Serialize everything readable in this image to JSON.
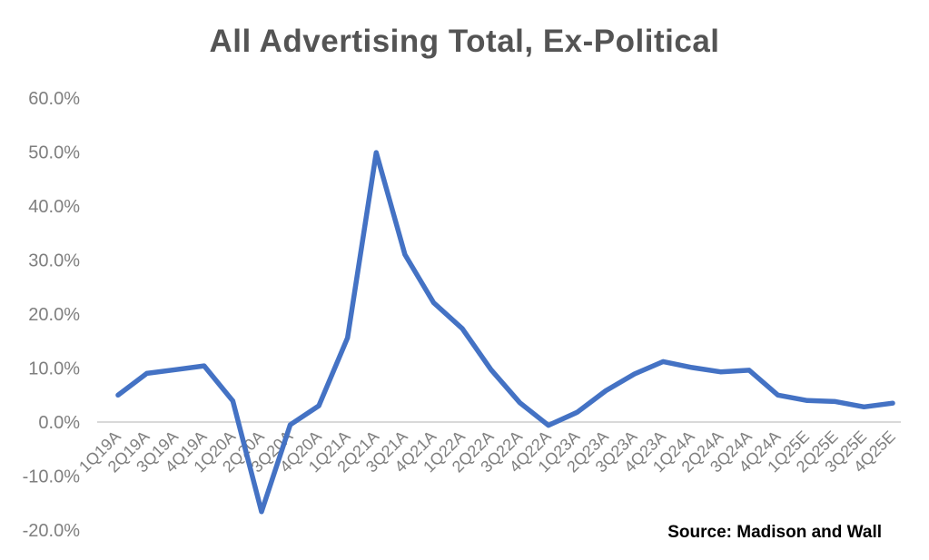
{
  "chart_data": {
    "type": "line",
    "title": "All Advertising Total, Ex-Political",
    "source": "Source: Madison and Wall",
    "categories": [
      "1Q19A",
      "2Q19A",
      "3Q19A",
      "4Q19A",
      "1Q20A",
      "2Q20A",
      "3Q20A",
      "4Q20A",
      "1Q21A",
      "2Q21A",
      "3Q21A",
      "4Q21A",
      "1Q22A",
      "2Q22A",
      "3Q22A",
      "4Q22A",
      "1Q23A",
      "2Q23A",
      "3Q23A",
      "4Q23A",
      "1Q24A",
      "2Q24A",
      "3Q24A",
      "4Q24A",
      "1Q25E",
      "2Q25E",
      "3Q25E",
      "4Q25E"
    ],
    "values": [
      5.0,
      9.0,
      9.7,
      10.4,
      3.9,
      -16.6,
      -0.5,
      3.0,
      15.6,
      49.9,
      31.0,
      22.1,
      17.3,
      9.7,
      3.6,
      -0.6,
      1.8,
      5.8,
      8.9,
      11.2,
      10.1,
      9.3,
      9.6,
      5.0,
      4.0,
      3.8,
      2.8,
      3.5
    ],
    "unit": "%",
    "ylim": [
      -20,
      60
    ],
    "y_ticks": [
      60,
      50,
      40,
      30,
      20,
      10,
      0,
      -10,
      -20
    ],
    "y_tick_labels": [
      "60.0%",
      "50.0%",
      "40.0%",
      "30.0%",
      "20.0%",
      "10.0%",
      "0.0%",
      "-10.0%",
      "-20.0%"
    ],
    "grid": "zero-line-only",
    "legend": "none",
    "line_color": "#4472C4",
    "axis_label_color": "#7F7F7F",
    "title_color": "#545454",
    "gridline_color": "#D9D9D9",
    "source_color": "#000000"
  }
}
